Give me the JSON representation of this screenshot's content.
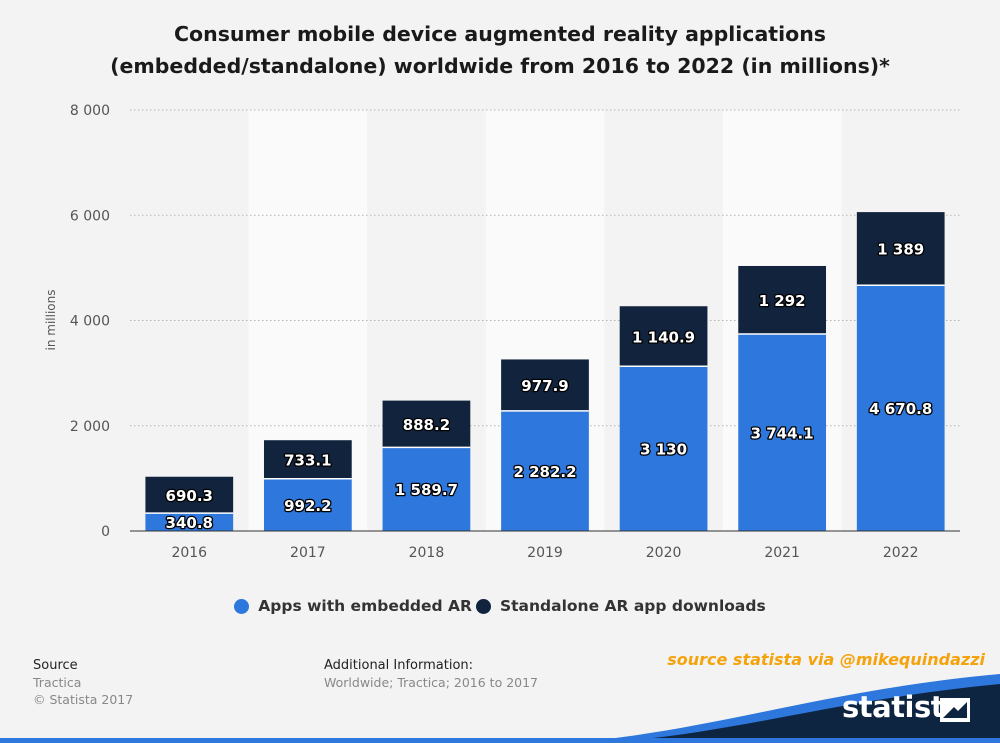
{
  "title_line1": "Consumer mobile device augmented reality applications",
  "title_line2": "(embedded/standalone) worldwide from 2016 to 2022 (in millions)*",
  "chart_data": {
    "type": "bar",
    "stacked": true,
    "categories": [
      "2016",
      "2017",
      "2018",
      "2019",
      "2020",
      "2021",
      "2022"
    ],
    "series": [
      {
        "name": "Apps with embedded AR",
        "color": "#2e77dc",
        "values": [
          340.8,
          992.2,
          1589.7,
          2282.2,
          3130,
          3744.1,
          4670.8
        ],
        "labels": [
          "340.8",
          "992.2",
          "1 589.7",
          "2 282.2",
          "3 130",
          "3 744.1",
          "4 670.8"
        ]
      },
      {
        "name": "Standalone AR app downloads",
        "color": "#12243d",
        "values": [
          690.3,
          733.1,
          888.2,
          977.9,
          1140.9,
          1292,
          1389
        ],
        "labels": [
          "690.3",
          "733.1",
          "888.2",
          "977.9",
          "1 140.9",
          "1 292",
          "1 389"
        ]
      }
    ],
    "ylabel": "in millions",
    "ylim": [
      0,
      8000
    ],
    "yticks": [
      0,
      2000,
      4000,
      6000,
      8000
    ],
    "ytick_labels": [
      "0",
      "2 000",
      "4 000",
      "6 000",
      "8 000"
    ],
    "grid": true,
    "legend_position": "bottom"
  },
  "footer": {
    "source_heading": "Source",
    "source_name": "Tractica",
    "copyright": "© Statista 2017",
    "additional_heading": "Additional Information:",
    "additional_text": "Worldwide; Tractica; 2016 to 2017"
  },
  "credit": "source statista via @mikequindazzi",
  "brand": "statista",
  "colors": {
    "accent": "#2e77dc",
    "dark": "#12243d",
    "credit": "#f5a30c",
    "brand_bg": "#0e2542"
  }
}
